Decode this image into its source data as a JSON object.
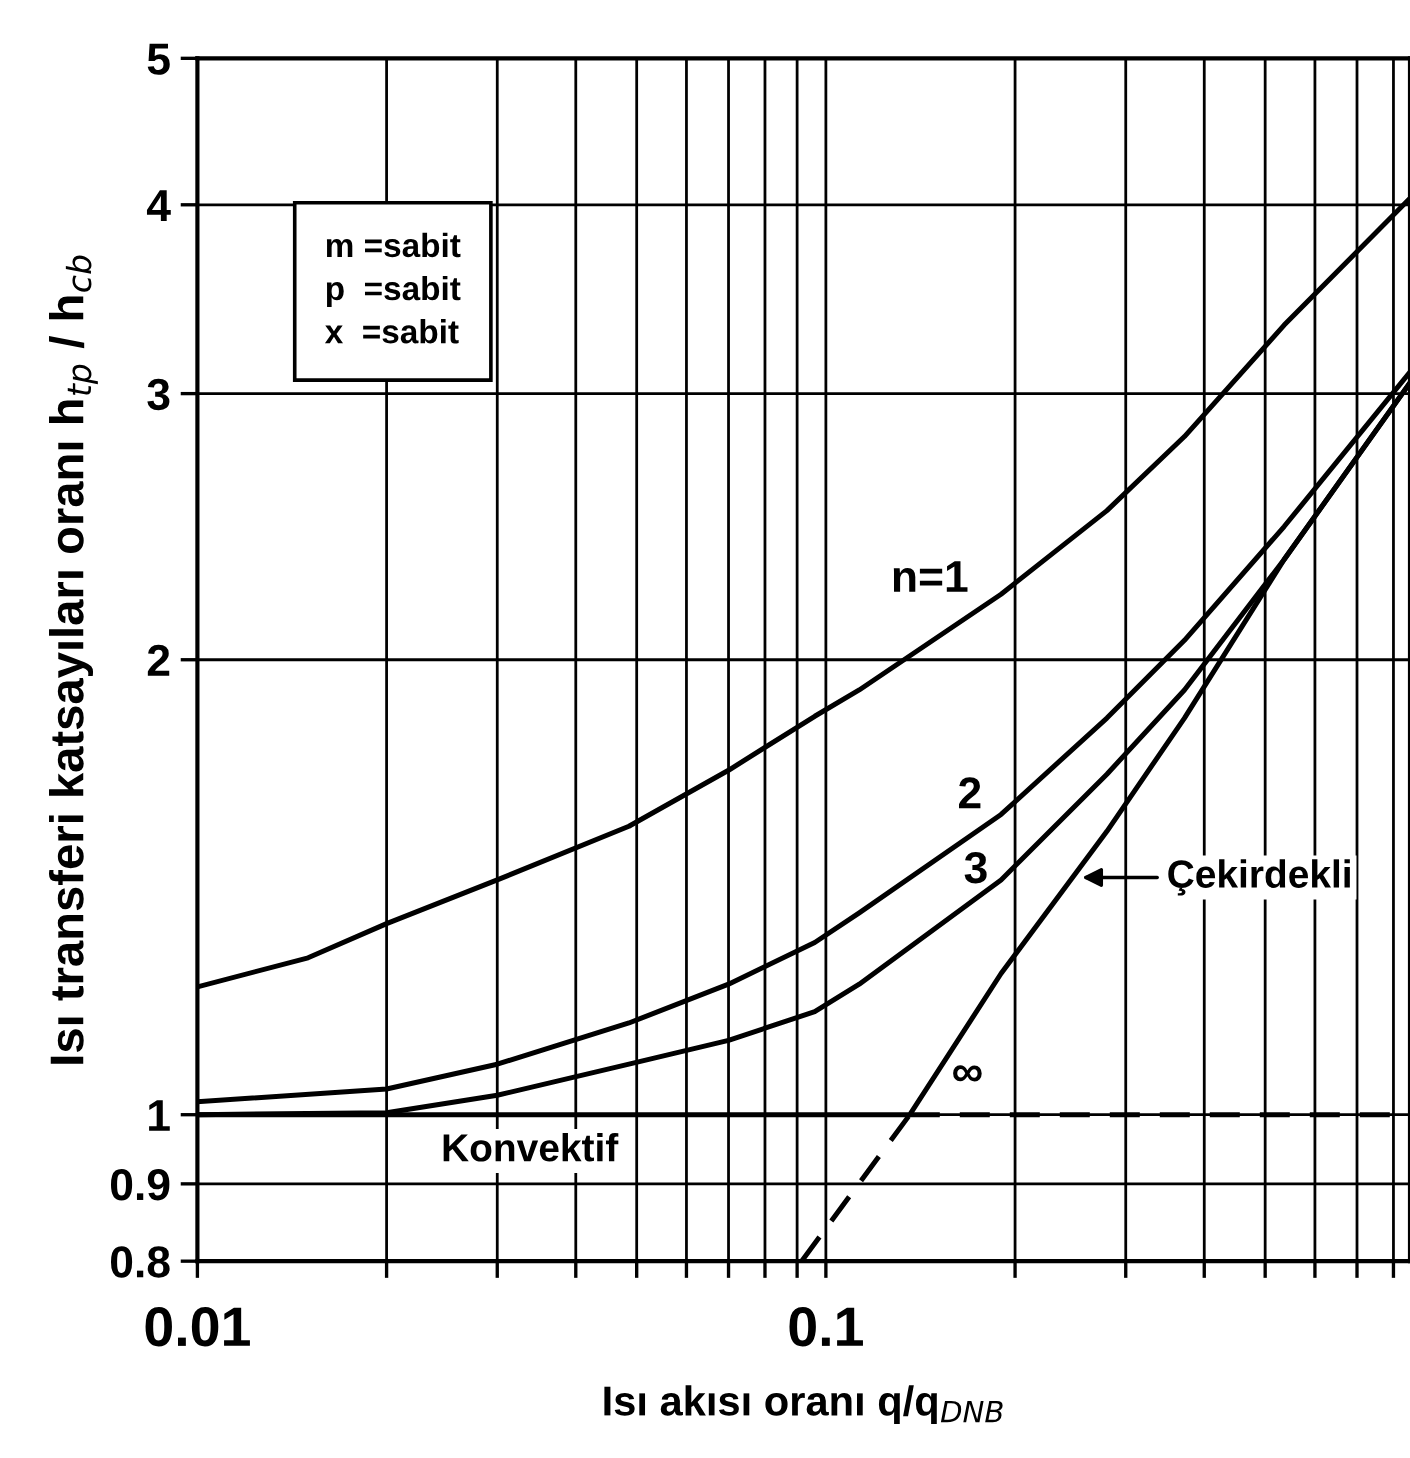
{
  "chart_data": {
    "type": "line",
    "xlabel": "Isı akısı oranı q/q$_{DNB}$",
    "ylabel": "Isı transferi katsayıları oranı h$_{tp}$ / h$_{cb}$",
    "log": "xy",
    "grid": true,
    "xlim": [
      0.01,
      0.85
    ],
    "ylim": [
      0.8,
      5
    ],
    "xticks": [
      0.01,
      {
        "value": 0.02,
        "label": null
      },
      {
        "value": 0.03,
        "label": null
      },
      {
        "value": 0.04,
        "label": null
      },
      {
        "value": 0.05,
        "label": null
      },
      {
        "value": 0.06,
        "label": null
      },
      {
        "value": 0.07,
        "label": null
      },
      {
        "value": 0.08,
        "label": null
      },
      {
        "value": 0.09,
        "label": null
      },
      0.1,
      {
        "value": 0.2,
        "label": null
      },
      {
        "value": 0.3,
        "label": null
      },
      {
        "value": 0.4,
        "label": null
      },
      {
        "value": 0.5,
        "label": null
      },
      {
        "value": 0.6,
        "label": null
      },
      {
        "value": 0.7,
        "label": null
      },
      {
        "value": 0.8,
        "label": null
      }
    ],
    "yticks": [
      0.8,
      0.9,
      1,
      2,
      3,
      4,
      5
    ],
    "series": [
      {
        "color": "#000000",
        "line_style": "solid",
        "x": [
          0.01,
          0.015,
          0.02,
          0.03,
          0.0486,
          0.07,
          0.096,
          0.113,
          0.19,
          0.28,
          0.372,
          0.536,
          0.85
        ],
        "values": [
          1.215,
          1.27,
          1.338,
          1.43,
          1.552,
          1.69,
          1.835,
          1.91,
          2.21,
          2.51,
          2.81,
          3.33,
          4.04
        ]
      },
      {
        "color": "#000000",
        "line_style": "solid",
        "x": [
          0.01,
          0.02,
          0.03,
          0.0486,
          0.07,
          0.096,
          0.113,
          0.19,
          0.28,
          0.372,
          0.536,
          0.85
        ],
        "values": [
          1.02,
          1.04,
          1.08,
          1.15,
          1.22,
          1.3,
          1.36,
          1.58,
          1.83,
          2.06,
          2.45,
          3.1
        ]
      },
      {
        "color": "#000000",
        "line_style": "solid",
        "x": [
          0.01,
          0.02,
          0.03,
          0.0486,
          0.07,
          0.096,
          0.113,
          0.19,
          0.28,
          0.372,
          0.536,
          0.85
        ],
        "values": [
          1.0,
          1.003,
          1.03,
          1.08,
          1.12,
          1.17,
          1.22,
          1.43,
          1.68,
          1.91,
          2.33,
          3.05
        ]
      },
      {
        "color": "#000000",
        "line_style": "solid",
        "x": [
          0.01,
          0.136,
          0.19,
          0.28,
          0.372,
          0.536,
          0.85
        ],
        "values": [
          1.0,
          1.0,
          1.24,
          1.54,
          1.83,
          2.33,
          3.05
        ]
      },
      {
        "color": "#000000",
        "line_style": "dashed",
        "x": [
          0.136,
          0.85
        ],
        "values": [
          1.0,
          1.0
        ]
      },
      {
        "color": "#000000",
        "line_style": "dashed",
        "x": [
          0.0915,
          0.136
        ],
        "values": [
          0.8,
          1.0
        ]
      }
    ],
    "annotations": [
      "n=1",
      "2",
      "3",
      "∞",
      "Konvektif",
      "Çekirdekli",
      "m =sabit\np  =sabit\nx  =sabit"
    ]
  }
}
